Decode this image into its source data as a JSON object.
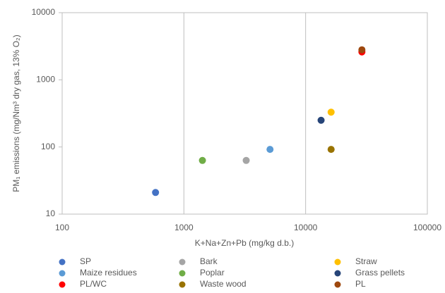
{
  "chart_data": {
    "type": "scatter",
    "x_label": "K+Na+Zn+Pb (mg/kg d.b.)",
    "y_label": "PM₁ emissions (mg/Nm³ dry gas, 13% O₂)",
    "x_log": true,
    "y_log": true,
    "grid": "x",
    "xlim": [
      100,
      100000
    ],
    "xticks": [
      100,
      1000,
      10000,
      100000
    ],
    "ylim": [
      10,
      10000
    ],
    "yticks": [
      10,
      100,
      1000,
      10000
    ],
    "legend": "bottom",
    "series": [
      {
        "name": "SP",
        "color": "#4472c4",
        "x": [
          585
        ],
        "y": [
          21
        ]
      },
      {
        "name": "Bark",
        "color": "#a5a5a5",
        "x": [
          3250
        ],
        "y": [
          63
        ]
      },
      {
        "name": "Straw",
        "color": "#ffc000",
        "x": [
          16200
        ],
        "y": [
          330
        ]
      },
      {
        "name": "Maize residues",
        "color": "#5b9bd5",
        "x": [
          5100
        ],
        "y": [
          92
        ]
      },
      {
        "name": "Poplar",
        "color": "#70ad47",
        "x": [
          1420
        ],
        "y": [
          63
        ]
      },
      {
        "name": "Grass pellets",
        "color": "#264478",
        "x": [
          13400
        ],
        "y": [
          250
        ]
      },
      {
        "name": "PL/WC",
        "color": "#ff0000",
        "x": [
          29000
        ],
        "y": [
          2600
        ]
      },
      {
        "name": "Waste wood",
        "color": "#997300",
        "x": [
          16200
        ],
        "y": [
          92
        ]
      },
      {
        "name": "PL",
        "color": "#9e480e",
        "x": [
          29000
        ],
        "y": [
          2800
        ]
      }
    ]
  }
}
